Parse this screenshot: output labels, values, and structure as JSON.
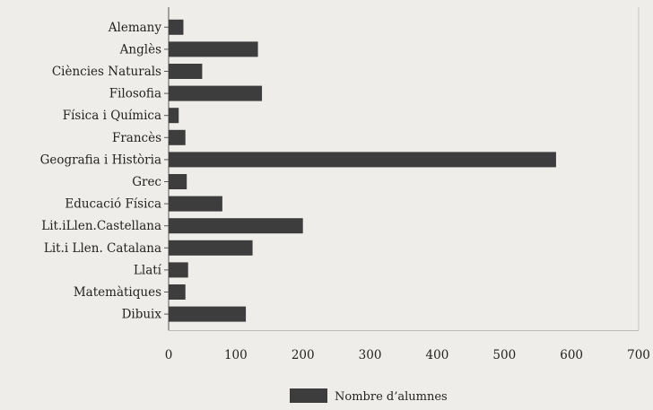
{
  "chart_data": {
    "type": "bar",
    "orientation": "horizontal",
    "categories": [
      "Alemany",
      "Anglès",
      "Ciències Naturals",
      "Filosofia",
      "Física i Química",
      "Francès",
      "Geografia i Història",
      "Grec",
      "Educació Física",
      "Lit.iLlen.Castellana",
      "Lit.i Llen. Catalana",
      "Llatí",
      "Matemàtiques",
      "Dibuix"
    ],
    "series": [
      {
        "name": "Nombre d’alumnes",
        "color": "#3d3d3d",
        "values": [
          22,
          133,
          50,
          139,
          15,
          25,
          577,
          27,
          80,
          200,
          125,
          29,
          25,
          115
        ]
      }
    ],
    "xlim": [
      0,
      700
    ],
    "xticks": [
      "0",
      "100",
      "200",
      "300",
      "400",
      "500",
      "600",
      "700"
    ],
    "legend_position": "bottom-center",
    "grid": false,
    "title": "",
    "xlabel": "",
    "ylabel": ""
  }
}
